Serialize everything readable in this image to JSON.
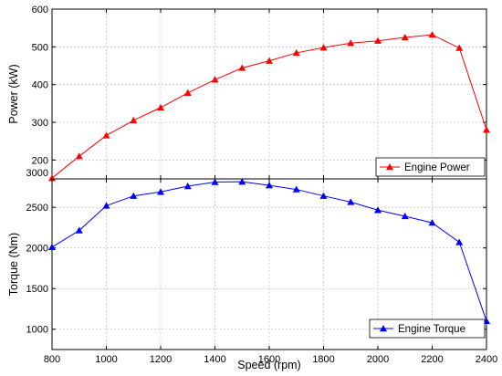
{
  "chart_data": [
    {
      "type": "line",
      "ylabel": "Power (kW)",
      "xlim": [
        800,
        2400
      ],
      "ylim": [
        150,
        600
      ],
      "yticks": [
        200,
        300,
        400,
        500,
        600
      ],
      "yticks_extra_label": "3000",
      "grid": true,
      "legend_position": "bottom-right",
      "color": "#ff0000",
      "marker": "triangle",
      "series": [
        {
          "name": "Engine Power",
          "x": [
            800,
            900,
            1000,
            1100,
            1200,
            1300,
            1400,
            1500,
            1600,
            1700,
            1800,
            1900,
            2000,
            2100,
            2200,
            2300,
            2400
          ],
          "values": [
            152,
            210,
            265,
            305,
            339,
            378,
            413,
            444,
            463,
            484,
            498,
            510,
            516,
            525,
            532,
            497,
            280
          ]
        }
      ]
    },
    {
      "type": "line",
      "xlabel": "Speed (rpm)",
      "ylabel": "Torque (Nm)",
      "xlim": [
        800,
        2400
      ],
      "ylim": [
        750,
        2850
      ],
      "xticks": [
        800,
        1000,
        1200,
        1400,
        1600,
        1800,
        2000,
        2200,
        2400
      ],
      "yticks": [
        1000,
        1500,
        2000,
        2500
      ],
      "grid": true,
      "legend_position": "bottom-right",
      "color": "#0000ff",
      "marker": "triangle",
      "series": [
        {
          "name": "Engine Torque",
          "x": [
            800,
            900,
            1000,
            1100,
            1200,
            1300,
            1400,
            1500,
            1600,
            1700,
            1800,
            1900,
            2000,
            2100,
            2200,
            2300,
            2400
          ],
          "values": [
            2010,
            2215,
            2520,
            2640,
            2690,
            2760,
            2810,
            2815,
            2770,
            2720,
            2640,
            2565,
            2465,
            2390,
            2310,
            2070,
            1100
          ]
        }
      ]
    }
  ]
}
